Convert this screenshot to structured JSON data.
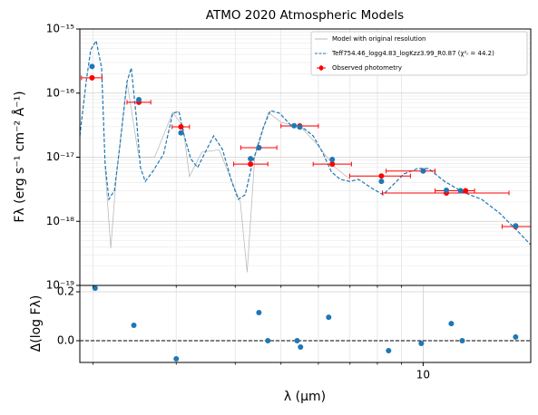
{
  "chart_data": [
    {
      "type": "sed",
      "title": "ATMO 2020 Atmospheric Models",
      "ylabel": "Fλ (erg s⁻¹ cm⁻² Å⁻¹)",
      "log_x": true,
      "log_y": true,
      "grid": true,
      "legend": "upper right",
      "xlim": [
        1.875,
        16.9
      ],
      "ylim": [
        1e-19,
        1e-15
      ],
      "xminor": [
        2,
        3,
        4,
        5,
        6,
        7,
        8,
        9
      ],
      "yticks": [
        {
          "value": 1e-19,
          "label": "10⁻¹⁹"
        },
        {
          "value": 1e-18,
          "label": "10⁻¹⁸"
        },
        {
          "value": 1e-17,
          "label": "10⁻¹⁷"
        },
        {
          "value": 1e-16,
          "label": "10⁻¹⁶"
        },
        {
          "value": 1e-15,
          "label": "10⁻¹⁵"
        }
      ],
      "series": [
        {
          "name": "Model with original resolution",
          "color": "#bbbbbb",
          "style": "solid",
          "x": [
            2.12,
            2.18,
            2.24,
            2.36,
            2.5,
            2.7,
            2.95,
            3.1,
            3.2,
            3.4,
            3.7,
            3.9,
            4.1,
            4.24,
            4.4,
            4.7,
            5.0,
            5.5,
            6.0,
            6.5,
            7.0
          ],
          "values": [
            7e-18,
            3.8e-19,
            5e-18,
            1.5e-16,
            1e-17,
            1e-17,
            5e-17,
            3e-17,
            5e-18,
            1.2e-17,
            1.3e-17,
            5e-18,
            2e-18,
            1.6e-19,
            1e-17,
            5e-17,
            3.5e-17,
            3e-17,
            1.5e-17,
            7e-18,
            4.5e-18
          ]
        },
        {
          "name": "Teff754.46_logg4.83_logKzz3.99_R0.87 (χ²ᵣ = 44.2)",
          "color": "#1f77b4",
          "style": "dashed",
          "x": [
            1.875,
            1.934,
            1.977,
            2.03,
            2.085,
            2.12,
            2.16,
            2.22,
            2.28,
            2.36,
            2.41,
            2.47,
            2.52,
            2.58,
            2.67,
            2.82,
            2.95,
            3.04,
            3.12,
            3.22,
            3.33,
            3.44,
            3.6,
            3.76,
            3.93,
            4.06,
            4.2,
            4.35,
            4.59,
            4.75,
            4.97,
            5.24,
            5.6,
            5.85,
            6.12,
            6.4,
            6.68,
            6.99,
            7.3,
            7.8,
            8.23,
            8.6,
            9.11,
            9.74,
            10.27,
            11.1,
            12.15,
            13.3,
            14.5,
            15.85,
            16.9
          ],
          "values": [
            2.15e-17,
            1.51e-16,
            4.73e-16,
            6.55e-16,
            2.47e-16,
            8.1e-18,
            2.2e-18,
            3.05e-18,
            1.55e-17,
            1.51e-16,
            2.47e-16,
            4.12e-17,
            6.9e-18,
            4.2e-18,
            5.85e-18,
            1.12e-17,
            4.85e-17,
            5.18e-17,
            2.15e-17,
            9.5e-18,
            6.9e-18,
            1.12e-17,
            2.15e-17,
            1.32e-17,
            4.2e-18,
            2.2e-18,
            2.6e-18,
            8.1e-18,
            2.97e-17,
            5.35e-17,
            4.85e-17,
            3.18e-17,
            2.79e-17,
            2.15e-17,
            1.2e-17,
            5.85e-18,
            4.5e-18,
            4.2e-18,
            4.5e-18,
            3.25e-18,
            2.6e-18,
            3.6e-18,
            5.5e-18,
            6.65e-18,
            6.65e-18,
            4.2e-18,
            2.85e-18,
            2.2e-18,
            1.35e-18,
            7.05e-19,
            4.3e-19
          ]
        },
        {
          "name": "Observed photometry",
          "color": "#ff0000",
          "style": "errorbar",
          "x": [
            1.99,
            2.5,
            3.07,
            4.31,
            4.49,
            5.48,
            6.42,
            8.16,
            10.0,
            11.2,
            12.3,
            15.7
          ],
          "x_low": [
            1.89,
            2.36,
            2.94,
            3.97,
            4.11,
            5.0,
            5.85,
            6.99,
            8.35,
            8.2,
            10.6,
            14.7
          ],
          "x_high": [
            2.09,
            2.65,
            3.2,
            4.69,
            4.9,
            6.0,
            7.05,
            9.4,
            10.6,
            15.2,
            12.85,
            16.9
          ],
          "values": [
            1.73e-16,
            7.2e-17,
            2.97e-17,
            7.8e-18,
            1.41e-17,
            3.07e-17,
            7.8e-18,
            5.1e-18,
            6.1e-18,
            2.77e-18,
            3e-18,
            8.3e-19
          ]
        },
        {
          "color": "#1f77b4",
          "style": "points",
          "x": [
            1.99,
            2.5,
            3.07,
            4.31,
            4.49,
            5.33,
            5.48,
            6.42,
            8.16,
            10.0,
            11.2,
            12.0,
            15.7
          ],
          "values": [
            2.6e-16,
            7.9e-17,
            2.4e-17,
            9.5e-18,
            1.41e-17,
            3.1e-17,
            2.95e-17,
            9.2e-18,
            4.2e-18,
            6.1e-18,
            3.05e-18,
            3e-18,
            8.5e-19
          ]
        }
      ]
    },
    {
      "type": "scatter",
      "xlabel": "λ (μm)",
      "ylabel": "Δ(log Fλ)",
      "log_x": true,
      "grid": true,
      "xlim": [
        1.875,
        16.9
      ],
      "ylim": [
        -0.089,
        0.226
      ],
      "xticks": [
        10
      ],
      "xminor": [
        2,
        3,
        4,
        5,
        6,
        7,
        8,
        9
      ],
      "yticks": [
        {
          "value": 0,
          "label": "0.0"
        },
        {
          "value": 0.2,
          "label": "0.2"
        }
      ],
      "hline": 0,
      "color": "#1f77b4",
      "x": [
        2.02,
        2.44,
        3.0,
        4.49,
        4.69,
        5.41,
        5.5,
        6.31,
        8.45,
        9.91,
        11.47,
        12.1,
        15.7
      ],
      "values": [
        0.215,
        0.063,
        -0.074,
        0.115,
        0.0,
        0.0,
        -0.026,
        0.096,
        -0.041,
        -0.011,
        0.07,
        0.0,
        0.015
      ]
    }
  ]
}
